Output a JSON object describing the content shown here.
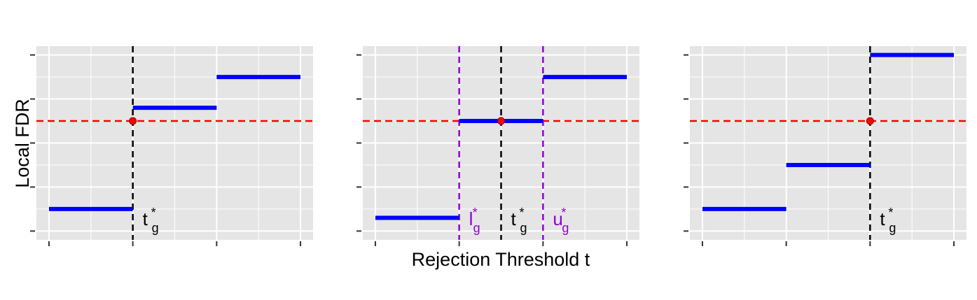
{
  "figure": {
    "ylabel": "Local FDR",
    "xlabel": "Rejection Threshold t"
  },
  "colors": {
    "step": "#0000ff",
    "hline": "#ff0000",
    "point": "#ff0000",
    "vline_main": "#000000",
    "vline_bound": "#9400d3",
    "label_main": "#000000",
    "label_bound": "#9400d3"
  },
  "chart_data": [
    {
      "type": "line",
      "grid": true,
      "xlim": [
        -0.15,
        3.15
      ],
      "ylim": [
        -0.2,
        4.2
      ],
      "xticks": [
        0,
        1,
        2,
        3
      ],
      "yticks": [
        0,
        1,
        2,
        3,
        4
      ],
      "steps": [
        {
          "x": [
            0,
            1
          ],
          "y": 0.5
        },
        {
          "x": [
            1,
            2
          ],
          "y": 2.8
        },
        {
          "x": [
            2,
            3
          ],
          "y": 3.5
        }
      ],
      "hline": 2.5,
      "point": {
        "x": 1,
        "y": 2.5
      },
      "vlines": [
        {
          "x": 1,
          "role": "main",
          "label": "t",
          "sub": "g",
          "sup": "*"
        }
      ]
    },
    {
      "type": "line",
      "grid": true,
      "xlim": [
        -0.15,
        3.15
      ],
      "ylim": [
        -0.2,
        4.2
      ],
      "xticks": [
        0,
        1,
        2,
        3
      ],
      "yticks": [
        0,
        1,
        2,
        3,
        4
      ],
      "steps": [
        {
          "x": [
            0,
            1
          ],
          "y": 0.3
        },
        {
          "x": [
            1,
            2
          ],
          "y": 2.5
        },
        {
          "x": [
            2,
            3
          ],
          "y": 3.5
        }
      ],
      "hline": 2.5,
      "point": {
        "x": 1.5,
        "y": 2.5
      },
      "vlines": [
        {
          "x": 1,
          "role": "bound",
          "label": "l",
          "sub": "g",
          "sup": "*"
        },
        {
          "x": 1.5,
          "role": "main",
          "label": "t",
          "sub": "g",
          "sup": "*"
        },
        {
          "x": 2,
          "role": "bound",
          "label": "u",
          "sub": "g",
          "sup": "*"
        }
      ]
    },
    {
      "type": "line",
      "grid": true,
      "xlim": [
        -0.15,
        3.15
      ],
      "ylim": [
        -0.2,
        4.2
      ],
      "xticks": [
        0,
        1,
        2,
        3
      ],
      "yticks": [
        0,
        1,
        2,
        3,
        4
      ],
      "steps": [
        {
          "x": [
            0,
            1
          ],
          "y": 0.5
        },
        {
          "x": [
            1,
            2
          ],
          "y": 1.5
        },
        {
          "x": [
            2,
            3
          ],
          "y": 4.0
        }
      ],
      "hline": 2.5,
      "point": {
        "x": 2,
        "y": 2.5
      },
      "vlines": [
        {
          "x": 2,
          "role": "main",
          "label": "t",
          "sub": "g",
          "sup": "*"
        }
      ]
    }
  ]
}
